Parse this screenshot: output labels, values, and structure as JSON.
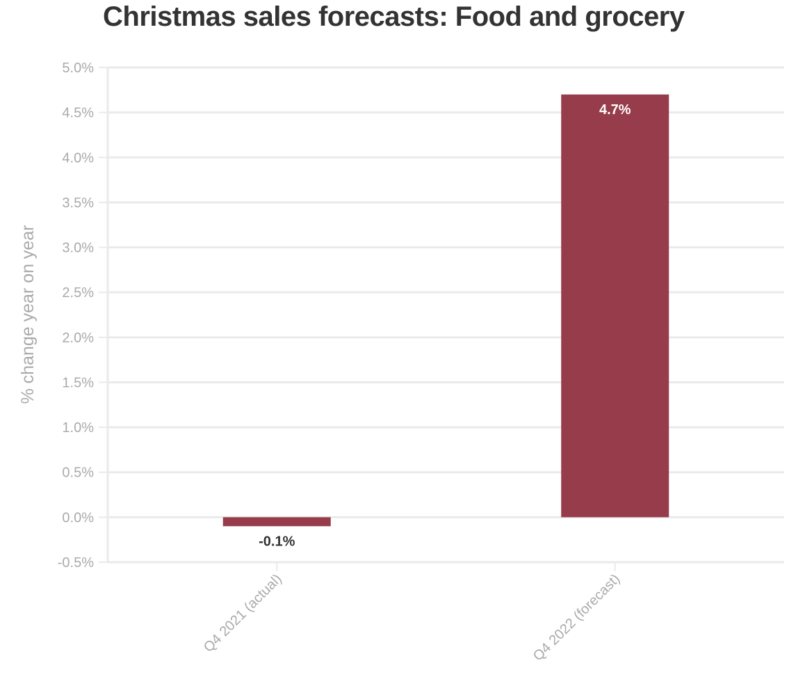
{
  "chart_data": {
    "type": "bar",
    "title": "Christmas sales forecasts: Food and grocery",
    "ylabel": "% change year on year",
    "xlabel": "",
    "categories": [
      "Q4 2021 (actual)",
      "Q4 2022 (forecast)"
    ],
    "values": [
      -0.1,
      4.7
    ],
    "data_labels": [
      "-0.1%",
      "4.7%"
    ],
    "ylim": [
      -0.5,
      5.0
    ],
    "yticks": [
      -0.5,
      0.0,
      0.5,
      1.0,
      1.5,
      2.0,
      2.5,
      3.0,
      3.5,
      4.0,
      4.5,
      5.0
    ],
    "ytick_labels": [
      "-0.5%",
      "0.0%",
      "0.5%",
      "1.0%",
      "1.5%",
      "2.0%",
      "2.5%",
      "3.0%",
      "3.5%",
      "4.0%",
      "4.5%",
      "5.0%"
    ],
    "grid": true,
    "colors": {
      "bar": "#963c4b",
      "grid": "#eaeaea",
      "axis_text": "#aaaaaa",
      "label_dark": "#333333",
      "label_light": "#ffffff"
    }
  }
}
